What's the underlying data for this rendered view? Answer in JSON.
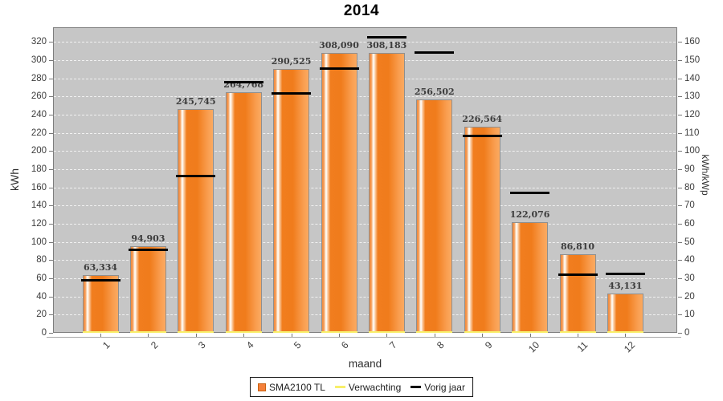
{
  "chart_data": {
    "type": "bar",
    "title": "2014",
    "xlabel": "maand",
    "ylabel_left": "kWh",
    "ylabel_right": "kWh/kWp",
    "categories": [
      "1",
      "2",
      "3",
      "4",
      "5",
      "6",
      "7",
      "8",
      "9",
      "10",
      "11",
      "12"
    ],
    "left_axis": {
      "min": 0,
      "max": 320,
      "step": 20
    },
    "right_axis": {
      "min": 0,
      "max": 160,
      "step": 10
    },
    "grid": true,
    "legend_position": "bottom",
    "plot_bg": "#c6c6c6",
    "series": [
      {
        "name": "SMA2100 TL",
        "type": "bar",
        "color": "#f5813b",
        "values": [
          63.334,
          94.903,
          245.745,
          264.768,
          290.525,
          308.09,
          308.183,
          256.502,
          226.564,
          122.076,
          86.81,
          43.131
        ],
        "value_labels": [
          "63,334",
          "94,903",
          "245,745",
          "264,768",
          "290,525",
          "308,090",
          "308,183",
          "256,502",
          "226,564",
          "122,076",
          "86,810",
          "43,131"
        ]
      },
      {
        "name": "Verwachting",
        "type": "line",
        "color": "#f8ef6a",
        "values": [
          0,
          0,
          0,
          0,
          0,
          0,
          0,
          0,
          0,
          0,
          0,
          0
        ]
      },
      {
        "name": "Vorig jaar",
        "type": "line",
        "color": "#000000",
        "values": [
          58,
          92,
          173,
          276,
          264,
          291,
          325,
          309,
          217,
          154,
          64,
          65
        ]
      }
    ]
  }
}
